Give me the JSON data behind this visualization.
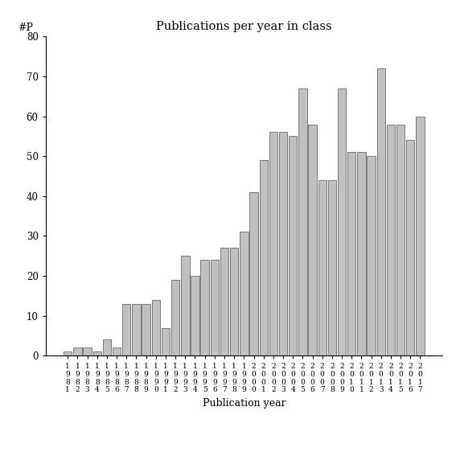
{
  "title": "Publications per year in class",
  "xlabel": "Publication year",
  "ylabel": "#P",
  "ylim": [
    0,
    80
  ],
  "yticks": [
    0,
    10,
    20,
    30,
    40,
    50,
    60,
    70,
    80
  ],
  "bar_color": "#c0c0c0",
  "bar_edgecolor": "#555555",
  "years": [
    "1981",
    "1982",
    "1983",
    "1984",
    "1985",
    "1986",
    "1987",
    "1988",
    "1989",
    "1990",
    "1991",
    "1992",
    "1993",
    "1994",
    "1995",
    "1996",
    "1997",
    "1998",
    "1999",
    "2000",
    "2001",
    "2002",
    "2003",
    "2004",
    "2005",
    "2006",
    "2007",
    "2008",
    "2009",
    "2010",
    "2011",
    "2012",
    "2013",
    "2014",
    "2015",
    "2016",
    "2017"
  ],
  "values": [
    1,
    2,
    2,
    1,
    4,
    2,
    13,
    13,
    13,
    14,
    7,
    19,
    25,
    20,
    24,
    24,
    27,
    27,
    31,
    41,
    49,
    56,
    56,
    55,
    67,
    58,
    44,
    44,
    67,
    51,
    51,
    50,
    72,
    58,
    58,
    54,
    60
  ]
}
